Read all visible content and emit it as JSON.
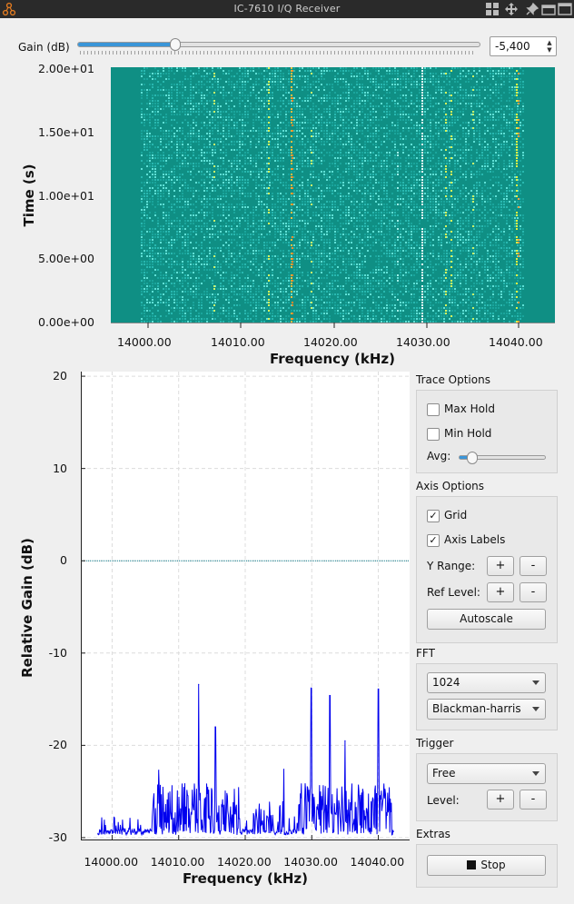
{
  "window": {
    "title": "IC-7610 I/Q Receiver"
  },
  "gain": {
    "label": "Gain (dB)",
    "value": "-5,400",
    "fraction": 0.24
  },
  "waterfall": {
    "ylabel": "Time (s)",
    "xlabel": "Frequency (kHz)",
    "yticks": [
      "2.00e+01",
      "1.50e+01",
      "1.00e+01",
      "5.00e+00",
      "0.00e+00"
    ],
    "xticks": [
      "14000.00",
      "14010.00",
      "14020.00",
      "14030.00",
      "14040.00"
    ],
    "colors": {
      "background": "#0f8f84",
      "signal": "#bff04a",
      "peak": "#f08a2a"
    }
  },
  "chart_data": {
    "type": "line",
    "xlabel": "Frequency (kHz)",
    "ylabel": "Relative Gain (dB)",
    "xticks": [
      "14000.00",
      "14010.00",
      "14020.00",
      "14030.00",
      "14040.00"
    ],
    "yticks": [
      "20",
      "10",
      "0",
      "-10",
      "-20",
      "-30"
    ],
    "xlim": [
      13995.3,
      14044.7
    ],
    "ylim": [
      -30.3,
      20.5
    ],
    "grid": true,
    "reference_line": 0,
    "series_color": "#0000ee",
    "noise_floor": -30,
    "peaks": [
      {
        "x": 14007.0,
        "y": -22.7
      },
      {
        "x": 14013.0,
        "y": -13.4
      },
      {
        "x": 14015.5,
        "y": -18.0
      },
      {
        "x": 14025.8,
        "y": -22.6
      },
      {
        "x": 14029.9,
        "y": -13.8
      },
      {
        "x": 14032.7,
        "y": -14.6
      },
      {
        "x": 14035.0,
        "y": -19.5
      },
      {
        "x": 14040.0,
        "y": -13.9
      }
    ]
  },
  "trace_options": {
    "title": "Trace Options",
    "max_hold": "Max Hold",
    "min_hold": "Min Hold",
    "avg_label": "Avg:",
    "max_hold_checked": false,
    "min_hold_checked": false
  },
  "axis_options": {
    "title": "Axis Options",
    "grid": "Grid",
    "axis_labels": "Axis Labels",
    "grid_checked": true,
    "axis_labels_checked": true,
    "y_range": "Y Range:",
    "ref_level": "Ref Level:",
    "plus": "+",
    "minus": "-",
    "autoscale": "Autoscale"
  },
  "fft": {
    "title": "FFT",
    "size": "1024",
    "window": "Blackman-harris"
  },
  "trigger": {
    "title": "Trigger",
    "mode": "Free",
    "level_label": "Level:"
  },
  "extras": {
    "title": "Extras",
    "stop": "Stop"
  }
}
